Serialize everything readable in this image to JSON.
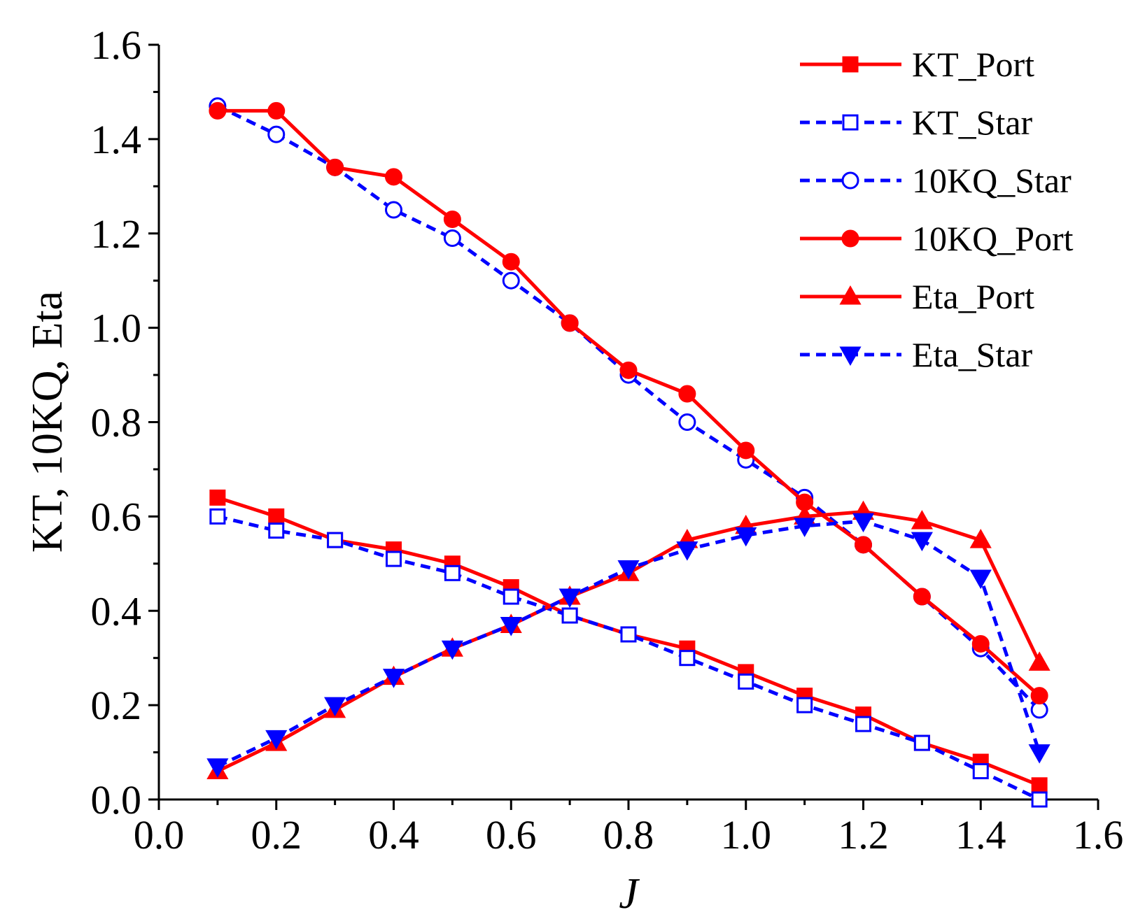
{
  "chart_data": {
    "type": "line",
    "title": "",
    "xlabel": "J",
    "ylabel": "KT, 10KQ, Eta",
    "xlim": [
      0.0,
      1.6
    ],
    "ylim": [
      0.0,
      1.6
    ],
    "x_ticks": [
      "0.0",
      "0.2",
      "0.4",
      "0.6",
      "0.8",
      "1.0",
      "1.2",
      "1.4",
      "1.6"
    ],
    "y_ticks": [
      "0.0",
      "0.2",
      "0.4",
      "0.6",
      "0.8",
      "1.0",
      "1.2",
      "1.4",
      "1.6"
    ],
    "legend_position": "top-right",
    "x": [
      0.1,
      0.2,
      0.3,
      0.4,
      0.5,
      0.6,
      0.7,
      0.8,
      0.9,
      1.0,
      1.1,
      1.2,
      1.3,
      1.4,
      1.5
    ],
    "series": [
      {
        "name": "KT_Port",
        "color": "#ff0000",
        "dash": "solid",
        "marker": "square-filled",
        "values": [
          0.64,
          0.6,
          0.55,
          0.53,
          0.5,
          0.45,
          0.39,
          0.35,
          0.32,
          0.27,
          0.22,
          0.18,
          0.12,
          0.08,
          0.03
        ]
      },
      {
        "name": "KT_Star",
        "color": "#0000ff",
        "dash": "dashed",
        "marker": "square-open",
        "values": [
          0.6,
          0.57,
          0.55,
          0.51,
          0.48,
          0.43,
          0.39,
          0.35,
          0.3,
          0.25,
          0.2,
          0.16,
          0.12,
          0.06,
          0.0
        ]
      },
      {
        "name": "10KQ_Star",
        "color": "#0000ff",
        "dash": "dashed",
        "marker": "circle-open",
        "values": [
          1.47,
          1.41,
          1.34,
          1.25,
          1.19,
          1.1,
          1.01,
          0.9,
          0.8,
          0.72,
          0.64,
          0.54,
          0.43,
          0.32,
          0.19
        ]
      },
      {
        "name": "10KQ_Port",
        "color": "#ff0000",
        "dash": "solid",
        "marker": "circle-filled",
        "values": [
          1.46,
          1.46,
          1.34,
          1.32,
          1.23,
          1.14,
          1.01,
          0.91,
          0.86,
          0.74,
          0.63,
          0.54,
          0.43,
          0.33,
          0.22
        ]
      },
      {
        "name": "Eta_Port",
        "color": "#ff0000",
        "dash": "solid",
        "marker": "triangle-up-filled",
        "values": [
          0.06,
          0.12,
          0.19,
          0.26,
          0.32,
          0.37,
          0.43,
          0.48,
          0.55,
          0.58,
          0.6,
          0.61,
          0.59,
          0.55,
          0.29
        ]
      },
      {
        "name": "Eta_Star",
        "color": "#0000ff",
        "dash": "dashed",
        "marker": "triangle-down-filled",
        "values": [
          0.07,
          0.13,
          0.2,
          0.26,
          0.32,
          0.37,
          0.43,
          0.49,
          0.53,
          0.56,
          0.58,
          0.59,
          0.55,
          0.47,
          0.1
        ]
      }
    ]
  }
}
